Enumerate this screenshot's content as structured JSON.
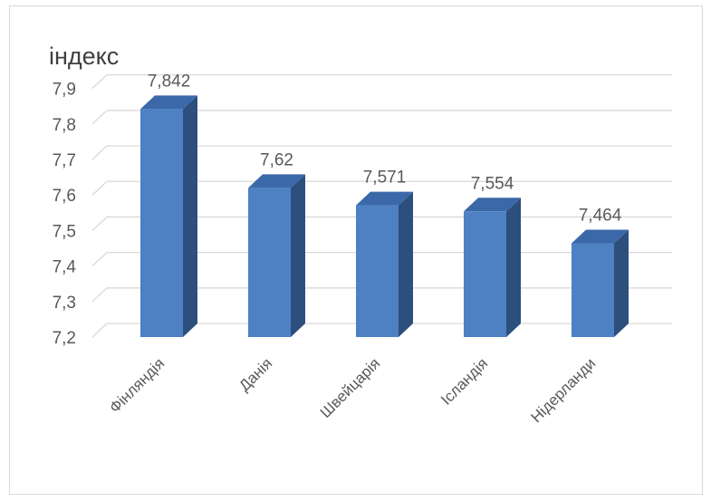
{
  "chart_data": {
    "type": "bar",
    "style": "3d-column",
    "title": "індекс",
    "categories": [
      "Фінляндія",
      "Данія",
      "Швейцарія",
      "Ісландія",
      "Нідерланди"
    ],
    "values": [
      7.842,
      7.62,
      7.571,
      7.554,
      7.464
    ],
    "value_labels": [
      "7,842",
      "7,62",
      "7,571",
      "7,554",
      "7,464"
    ],
    "yticks": [
      "7,2",
      "7,3",
      "7,4",
      "7,5",
      "7,6",
      "7,7",
      "7,8",
      "7,9"
    ],
    "ylim": [
      7.2,
      7.9
    ],
    "grid": true,
    "legend": "none",
    "colors": {
      "front": "#4e81c4",
      "top": "#3a68a8",
      "side": "#2c4f7e",
      "grid": "#d9d9d9",
      "text": "#595959",
      "title": "#404040"
    }
  }
}
